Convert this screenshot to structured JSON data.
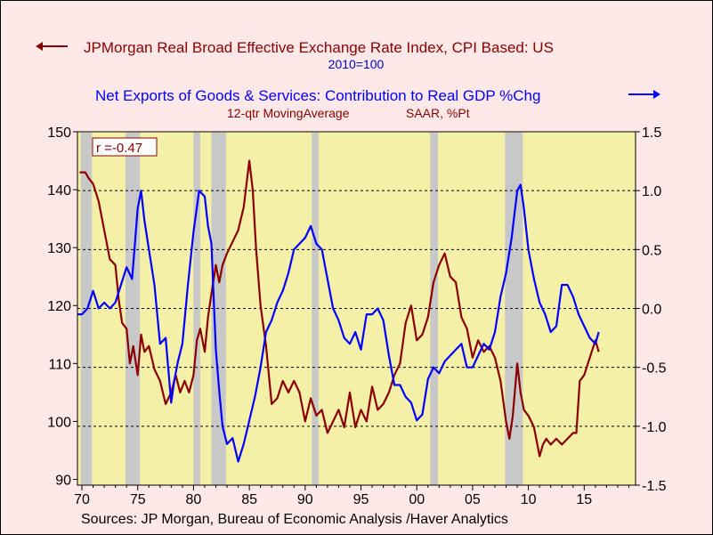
{
  "chart_data": {
    "type": "line",
    "title_left": "JPMorgan Real Broad Effective Exchange Rate Index, CPI Based: US",
    "title_left_sub": "2010=100",
    "title_right": "Net Exports of Goods & Services: Contribution to Real GDP %Chg",
    "title_right_sub1": "12-qtr MovingAverage",
    "title_right_sub2": "SAAR, %Pt",
    "annotation": "r =-0.47",
    "source": "Sources:  JP Morgan, Bureau of Economic Analysis /Haver Analytics",
    "x_range": [
      1969.6,
      2019.6
    ],
    "x_ticks": [
      {
        "v": 1970,
        "label": "70"
      },
      {
        "v": 1975,
        "label": "75"
      },
      {
        "v": 1980,
        "label": "80"
      },
      {
        "v": 1985,
        "label": "85"
      },
      {
        "v": 1990,
        "label": "90"
      },
      {
        "v": 1995,
        "label": "95"
      },
      {
        "v": 2000,
        "label": "00"
      },
      {
        "v": 2005,
        "label": "05"
      },
      {
        "v": 2010,
        "label": "10"
      },
      {
        "v": 2015,
        "label": "15"
      }
    ],
    "y_left": {
      "range": [
        89,
        150
      ],
      "ticks": [
        90,
        100,
        110,
        120,
        130,
        140,
        150
      ]
    },
    "y_right": {
      "range": [
        -1.5,
        1.5
      ],
      "ticks": [
        {
          "v": 1.5,
          "label": "1.5"
        },
        {
          "v": 1.0,
          "label": "1.0"
        },
        {
          "v": 0.5,
          "label": "0.5"
        },
        {
          "v": 0.0,
          "label": "0.0"
        },
        {
          "v": -0.5,
          "label": "-0.5"
        },
        {
          "v": -1.0,
          "label": "-1.0"
        },
        {
          "v": -1.5,
          "label": "-1.5"
        }
      ]
    },
    "recessions": [
      [
        1969.9,
        1970.9
      ],
      [
        1973.9,
        1975.2
      ],
      [
        1980.0,
        1980.6
      ],
      [
        1981.6,
        1982.9
      ],
      [
        1990.6,
        1991.2
      ],
      [
        2001.2,
        2001.9
      ],
      [
        2007.9,
        2009.5
      ]
    ],
    "series": [
      {
        "name": "JPMorgan Real Broad Effective Exchange Rate Index, CPI Based: US",
        "axis": "left",
        "color": "#8b0000",
        "x": [
          1969.8,
          1970.3,
          1970.6,
          1971.0,
          1971.5,
          1972.0,
          1972.5,
          1973.0,
          1973.3,
          1973.6,
          1974.0,
          1974.3,
          1974.6,
          1975.0,
          1975.3,
          1975.6,
          1976.0,
          1976.5,
          1977.0,
          1977.5,
          1978.0,
          1978.4,
          1978.8,
          1979.2,
          1979.6,
          1980.0,
          1980.3,
          1980.6,
          1981.0,
          1981.3,
          1981.6,
          1982.0,
          1982.3,
          1982.6,
          1983.0,
          1983.5,
          1984.0,
          1984.5,
          1985.0,
          1985.3,
          1985.6,
          1986.0,
          1986.5,
          1987.0,
          1987.5,
          1988.0,
          1988.5,
          1989.0,
          1989.5,
          1990.0,
          1990.5,
          1991.0,
          1991.5,
          1992.0,
          1992.5,
          1993.0,
          1993.5,
          1994.0,
          1994.5,
          1995.0,
          1995.5,
          1996.0,
          1996.5,
          1997.0,
          1997.5,
          1998.0,
          1998.5,
          1999.0,
          1999.5,
          2000.0,
          2000.5,
          2001.0,
          2001.5,
          2002.0,
          2002.5,
          2003.0,
          2003.5,
          2004.0,
          2004.5,
          2005.0,
          2005.5,
          2006.0,
          2006.5,
          2007.0,
          2007.5,
          2008.0,
          2008.3,
          2008.6,
          2009.0,
          2009.3,
          2009.6,
          2010.0,
          2010.5,
          2011.0,
          2011.3,
          2011.6,
          2012.0,
          2012.5,
          2013.0,
          2013.5,
          2014.0,
          2014.3,
          2014.6,
          2015.0,
          2015.5,
          2016.0,
          2016.3
        ],
        "y": [
          143,
          143,
          142,
          141,
          138,
          133,
          128,
          127,
          121,
          117,
          116,
          110,
          113,
          108,
          115,
          112,
          113,
          109,
          107,
          103,
          105,
          108,
          105,
          107,
          105,
          108,
          114,
          116,
          112,
          118,
          122,
          127,
          124,
          127,
          129,
          131,
          133,
          137,
          145,
          140,
          130,
          120,
          113,
          103,
          104,
          107,
          105,
          107,
          105,
          100,
          104,
          101,
          102,
          98,
          100,
          102,
          99,
          105,
          99,
          102,
          100,
          106,
          102,
          103,
          105,
          108,
          110,
          117,
          120,
          114,
          115,
          118,
          124,
          127,
          129,
          125,
          124,
          118,
          116,
          111,
          114,
          112,
          113,
          111,
          107,
          100,
          97,
          101,
          110,
          105,
          102,
          101,
          99,
          94,
          96,
          97,
          96,
          97,
          96,
          97,
          98,
          98,
          107,
          108,
          111,
          114,
          112
        ]
      },
      {
        "name": "Net Exports of Goods & Services: Contribution to Real GDP %Chg",
        "axis": "right",
        "color": "#0000ff",
        "x": [
          1969.6,
          1970.0,
          1970.5,
          1971.0,
          1971.5,
          1972.0,
          1972.5,
          1973.0,
          1973.5,
          1974.0,
          1974.5,
          1975.0,
          1975.3,
          1975.6,
          1976.0,
          1976.5,
          1977.0,
          1977.5,
          1978.0,
          1978.3,
          1978.6,
          1979.0,
          1979.5,
          1980.0,
          1980.5,
          1981.0,
          1981.3,
          1981.6,
          1982.0,
          1982.3,
          1982.6,
          1983.0,
          1983.5,
          1984.0,
          1984.5,
          1985.0,
          1985.5,
          1986.0,
          1986.5,
          1987.0,
          1987.5,
          1988.0,
          1988.5,
          1989.0,
          1989.5,
          1990.0,
          1990.5,
          1991.0,
          1991.5,
          1992.0,
          1992.5,
          1993.0,
          1993.5,
          1994.0,
          1994.5,
          1995.0,
          1995.5,
          1996.0,
          1996.5,
          1997.0,
          1997.5,
          1998.0,
          1998.5,
          1999.0,
          1999.5,
          2000.0,
          2000.5,
          2001.0,
          2001.5,
          2002.0,
          2002.5,
          2003.0,
          2003.5,
          2004.0,
          2004.5,
          2005.0,
          2005.5,
          2006.0,
          2006.5,
          2007.0,
          2007.5,
          2008.0,
          2008.5,
          2009.0,
          2009.3,
          2009.6,
          2010.0,
          2010.5,
          2011.0,
          2011.5,
          2012.0,
          2012.5,
          2013.0,
          2013.5,
          2014.0,
          2014.5,
          2015.0,
          2015.5,
          2016.0,
          2016.3
        ],
        "y": [
          -0.05,
          -0.05,
          0.0,
          0.15,
          0.0,
          0.05,
          0.0,
          0.05,
          0.2,
          0.35,
          0.25,
          0.85,
          1.0,
          0.75,
          0.5,
          0.2,
          -0.3,
          -0.25,
          -0.8,
          -0.6,
          -0.45,
          -0.3,
          0.2,
          0.65,
          1.0,
          0.95,
          0.7,
          0.55,
          -0.35,
          -0.7,
          -1.0,
          -1.15,
          -1.1,
          -1.3,
          -1.15,
          -0.95,
          -0.75,
          -0.5,
          -0.2,
          -0.1,
          0.05,
          0.15,
          0.3,
          0.5,
          0.55,
          0.6,
          0.7,
          0.55,
          0.5,
          0.25,
          0.0,
          -0.1,
          -0.25,
          -0.3,
          -0.2,
          -0.35,
          -0.05,
          -0.05,
          0.0,
          -0.1,
          -0.4,
          -0.65,
          -0.65,
          -0.75,
          -0.8,
          -0.95,
          -0.9,
          -0.6,
          -0.5,
          -0.55,
          -0.45,
          -0.4,
          -0.35,
          -0.3,
          -0.5,
          -0.5,
          -0.4,
          -0.3,
          -0.35,
          -0.2,
          0.1,
          0.3,
          0.6,
          1.0,
          1.05,
          0.85,
          0.5,
          0.25,
          0.05,
          -0.05,
          -0.2,
          -0.15,
          0.2,
          0.2,
          0.1,
          -0.05,
          -0.15,
          -0.25,
          -0.3,
          -0.2
        ]
      }
    ]
  }
}
